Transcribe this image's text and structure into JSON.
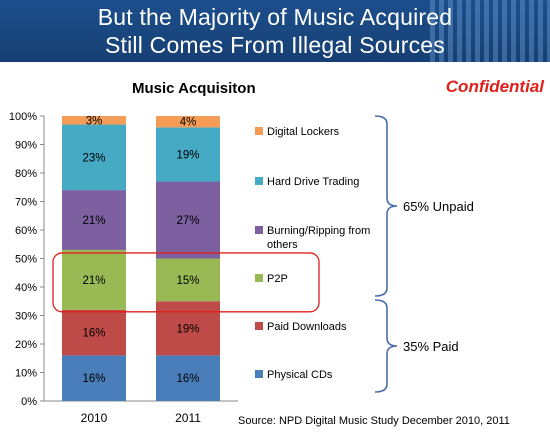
{
  "slide": {
    "title_line1": "But the Majority of Music Acquired",
    "title_line2": "Still Comes From Illegal Sources",
    "confidential": "Confidential",
    "source": "Source:  NPD Digital Music Study December  2010, 2011"
  },
  "chart_data": {
    "type": "bar",
    "stacked": true,
    "title": "Music Acquisiton",
    "categories": [
      "2010",
      "2011"
    ],
    "ylim": [
      0,
      100
    ],
    "yticks": [
      "0%",
      "10%",
      "20%",
      "30%",
      "40%",
      "50%",
      "60%",
      "70%",
      "80%",
      "90%",
      "100%"
    ],
    "series": [
      {
        "name": "Physical CDs",
        "values": [
          16,
          16
        ],
        "labels": [
          "16%",
          "16%"
        ],
        "color": "#4a7ebb"
      },
      {
        "name": "Paid Downloads",
        "values": [
          16,
          19
        ],
        "labels": [
          "16%",
          "19%"
        ],
        "color": "#be4b48"
      },
      {
        "name": "P2P",
        "values": [
          21,
          15
        ],
        "labels": [
          "21%",
          "15%"
        ],
        "color": "#98b954"
      },
      {
        "name": "Burning/Ripping from others",
        "values": [
          21,
          27
        ],
        "labels": [
          "21%",
          "27%"
        ],
        "color": "#7d60a0"
      },
      {
        "name": "Hard Drive Trading",
        "values": [
          23,
          19
        ],
        "labels": [
          "23%",
          "19%"
        ],
        "color": "#46aac5"
      },
      {
        "name": "Digital Lockers",
        "values": [
          3,
          4
        ],
        "labels": [
          "3%",
          "4%"
        ],
        "color": "#f59d56"
      }
    ],
    "legend": {
      "placement": "right"
    },
    "groups": [
      {
        "label": "65% Unpaid",
        "series": [
          "Digital Lockers",
          "Hard Drive Trading",
          "Burning/Ripping from others",
          "P2P"
        ]
      },
      {
        "label": "35% Paid",
        "series": [
          "Paid Downloads",
          "Physical CDs"
        ]
      }
    ],
    "highlight": {
      "series": "P2P",
      "color": "#e0201b"
    }
  }
}
